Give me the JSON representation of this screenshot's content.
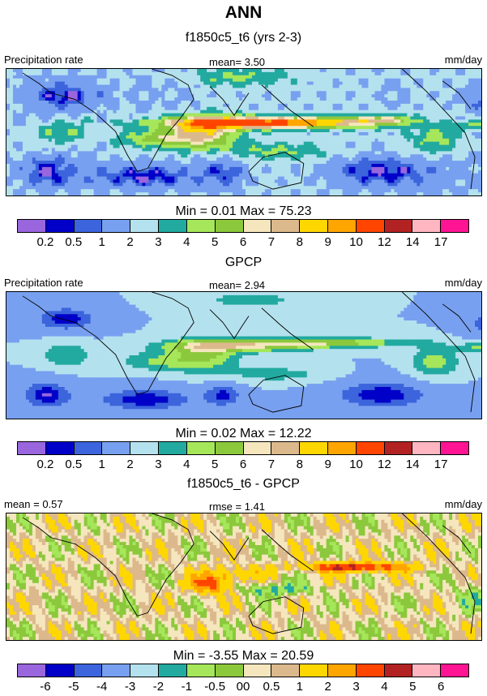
{
  "title": "ANN",
  "panels": [
    {
      "subtitle": "f1850c5_t6 (yrs 2-3)",
      "left_label": "Precipitation rate",
      "center_label": "mean=   3.50",
      "right_label": "mm/day",
      "minmax": "Min =   0.01 Max =  75.23",
      "field": "model"
    },
    {
      "subtitle": "GPCP",
      "left_label": "Precipitation rate",
      "center_label": "mean=   2.94",
      "right_label": "mm/day",
      "minmax": "Min =   0.02 Max =  12.22",
      "field": "obs"
    },
    {
      "subtitle": "f1850c5_t6 - GPCP",
      "left_label": "mean =   0.57",
      "center_label": "rmse =   1.41",
      "right_label": "mm/day",
      "minmax": "Min =  -3.55 Max =  20.59",
      "field": "diff"
    }
  ],
  "colorbar_abs": {
    "colors": [
      "#9966dd",
      "#0000c8",
      "#3c64dc",
      "#78a0f0",
      "#b4e1ee",
      "#22aaa0",
      "#a6e65a",
      "#8cc83c",
      "#f5e6be",
      "#dcb98c",
      "#ffd700",
      "#ffa500",
      "#ff4500",
      "#b22222",
      "#ffb6c1",
      "#ff1493"
    ],
    "ticks": [
      "0.2",
      "0.5",
      "1",
      "2",
      "3",
      "4",
      "5",
      "6",
      "7",
      "8",
      "9",
      "10",
      "12",
      "14",
      "17"
    ]
  },
  "colorbar_diff": {
    "colors": [
      "#9966dd",
      "#0000c8",
      "#3c64dc",
      "#78a0f0",
      "#b4e1ee",
      "#22aaa0",
      "#a6e65a",
      "#8cc83c",
      "#f5e6be",
      "#dcb98c",
      "#ffd700",
      "#ffa500",
      "#ff4500",
      "#b22222",
      "#ffb6c1",
      "#ff1493"
    ],
    "ticks": [
      "-6",
      "-5",
      "-4",
      "-3",
      "-2",
      "-1",
      "-0.5",
      "00",
      "0.5",
      "1",
      "2",
      "3",
      "4",
      "5",
      "6"
    ]
  }
}
